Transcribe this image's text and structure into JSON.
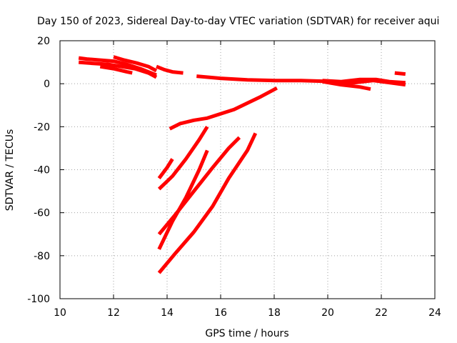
{
  "chart_data": {
    "type": "scatter",
    "title": "Day 150 of 2023, Sidereal Day-to-day VTEC variation (SDTVAR) for receiver aqui",
    "xlabel": "GPS time / hours",
    "ylabel": "SDTVAR / TECUs",
    "xlim": [
      10,
      24
    ],
    "ylim": [
      -100,
      20
    ],
    "xticks": [
      10,
      12,
      14,
      16,
      18,
      20,
      22,
      24
    ],
    "yticks": [
      -100,
      -80,
      -60,
      -40,
      -20,
      0,
      20
    ],
    "grid": true,
    "color": "#ff0000",
    "series": [
      {
        "x": [
          10.7,
          11.0,
          11.5,
          12.0,
          12.5,
          13.0,
          13.6
        ],
        "y": [
          12,
          11.5,
          11,
          10.5,
          9,
          7,
          4
        ]
      },
      {
        "x": [
          10.7,
          11.2,
          11.8,
          12.3,
          12.8,
          13.3,
          13.6
        ],
        "y": [
          10,
          9.5,
          9,
          8,
          7,
          5,
          3
        ]
      },
      {
        "x": [
          12.0,
          12.4,
          12.9,
          13.3,
          13.6
        ],
        "y": [
          12.5,
          11,
          9.5,
          8,
          6
        ]
      },
      {
        "x": [
          11.5,
          12.0,
          12.5,
          12.7
        ],
        "y": [
          8,
          7,
          5.5,
          5
        ]
      },
      {
        "x": [
          13.6,
          13.9,
          14.2,
          14.6
        ],
        "y": [
          8,
          6.5,
          5.5,
          5
        ]
      },
      {
        "x": [
          15.1,
          16.0,
          17.0,
          18.0,
          19.0,
          19.8
        ],
        "y": [
          3.5,
          2.5,
          1.8,
          1.5,
          1.5,
          1.2
        ]
      },
      {
        "x": [
          19.8,
          20.5,
          21.2,
          21.6
        ],
        "y": [
          1,
          -0.5,
          -1.5,
          -2.5
        ]
      },
      {
        "x": [
          19.8,
          20.5,
          21.2,
          21.8,
          22.3,
          22.9
        ],
        "y": [
          1.5,
          1,
          2,
          2,
          1,
          0.5
        ]
      },
      {
        "x": [
          20.3,
          21.0,
          21.7,
          22.3,
          22.9
        ],
        "y": [
          0.5,
          0.5,
          1.5,
          0.5,
          -0.5
        ]
      },
      {
        "x": [
          22.5,
          22.9
        ],
        "y": [
          5,
          4.5
        ]
      },
      {
        "x": [
          14.1,
          14.5,
          15.0,
          15.5,
          16.0,
          16.5,
          17.0,
          17.5,
          18.1
        ],
        "y": [
          -21,
          -18.5,
          -17,
          -16,
          -14,
          -12,
          -9,
          -6,
          -2
        ]
      },
      {
        "x": [
          13.7,
          14.0,
          14.2
        ],
        "y": [
          -44,
          -39,
          -35
        ]
      },
      {
        "x": [
          13.7,
          14.2,
          14.7,
          15.2,
          15.5
        ],
        "y": [
          -49,
          -43,
          -35,
          -26,
          -20
        ]
      },
      {
        "x": [
          13.7,
          14.2,
          14.7,
          15.2,
          15.5
        ],
        "y": [
          -77,
          -64,
          -53,
          -40,
          -31
        ]
      },
      {
        "x": [
          13.7,
          14.3,
          15.0,
          15.7,
          16.3,
          16.7
        ],
        "y": [
          -70,
          -61,
          -50,
          -39,
          -30,
          -25
        ]
      },
      {
        "x": [
          13.7,
          14.3,
          15.0,
          15.7,
          16.3,
          17.0,
          17.3
        ],
        "y": [
          -88,
          -79,
          -69,
          -57,
          -44,
          -31,
          -23
        ]
      }
    ]
  }
}
